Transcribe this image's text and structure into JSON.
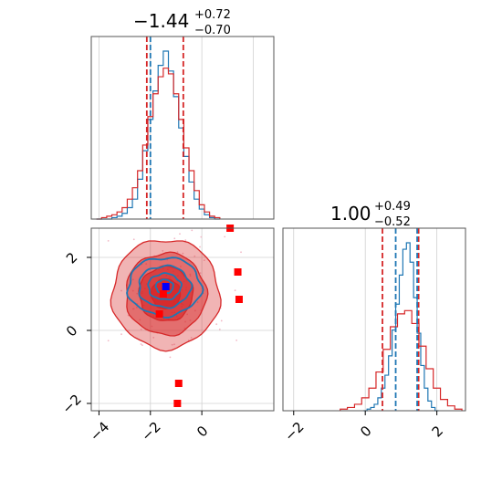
{
  "chart_data": [
    {
      "type": "histogram",
      "panel": "top-left",
      "title": {
        "main": "−1.44",
        "plus": "+0.72",
        "minus": "−0.70"
      },
      "xlim": [
        -4.3,
        2.8
      ],
      "grid": true,
      "series": [
        {
          "color": "#1f77b4",
          "centers": [
            -4.0,
            -3.8,
            -3.6,
            -3.4,
            -3.2,
            -3.0,
            -2.8,
            -2.6,
            -2.4,
            -2.2,
            -2.0,
            -1.8,
            -1.6,
            -1.4,
            -1.2,
            -1.0,
            -0.8,
            -0.6,
            -0.4,
            -0.2,
            0.0,
            0.2,
            0.4,
            0.6
          ],
          "counts": [
            0,
            0,
            0,
            1,
            2,
            4,
            8,
            14,
            28,
            48,
            70,
            90,
            108,
            118,
            104,
            86,
            64,
            44,
            26,
            14,
            7,
            3,
            1,
            0
          ]
        },
        {
          "color": "#d62728",
          "centers": [
            -4.0,
            -3.8,
            -3.6,
            -3.4,
            -3.2,
            -3.0,
            -2.8,
            -2.6,
            -2.4,
            -2.2,
            -2.0,
            -1.8,
            -1.6,
            -1.4,
            -1.2,
            -1.0,
            -0.8,
            -0.6,
            -0.4,
            -0.2,
            0.0,
            0.2,
            0.4,
            0.6
          ],
          "counts": [
            0,
            1,
            2,
            3,
            5,
            8,
            14,
            22,
            34,
            52,
            72,
            88,
            100,
            106,
            102,
            88,
            70,
            50,
            34,
            20,
            10,
            5,
            2,
            1
          ]
        }
      ],
      "quantile_lines": [
        {
          "color": "#d62728",
          "x": [
            -2.14,
            -0.72
          ]
        },
        {
          "color": "#1f77b4",
          "x": [
            -2.0
          ]
        }
      ]
    },
    {
      "type": "contour",
      "panel": "bottom-left",
      "xlim": [
        -4.3,
        2.8
      ],
      "ylim": [
        -2.2,
        2.8
      ],
      "x_ticks": [
        "−4",
        "−2",
        "0"
      ],
      "x_tick_values": [
        -4,
        -2,
        0
      ],
      "y_ticks": [
        "−2",
        "0",
        "2"
      ],
      "y_tick_values": [
        -2,
        0,
        2
      ],
      "grid": true,
      "blue_center": [
        -1.45,
        1.2
      ],
      "blue_spread": [
        0.75,
        0.42
      ],
      "red_center": [
        -1.4,
        1.0
      ],
      "red_spread": [
        0.95,
        0.68
      ],
      "markers": {
        "red": [
          [
            1.1,
            2.8
          ],
          [
            1.4,
            1.6
          ],
          [
            1.45,
            0.85
          ],
          [
            -1.5,
            1.0
          ],
          [
            -1.65,
            0.45
          ],
          [
            -0.9,
            -1.45
          ],
          [
            -0.95,
            -2.0
          ]
        ],
        "blue": [
          [
            -1.4,
            1.2
          ]
        ]
      }
    },
    {
      "type": "histogram",
      "panel": "bottom-right",
      "title": {
        "main": "1.00",
        "plus": "+0.49",
        "minus": "−0.52"
      },
      "xlim": [
        -2.3,
        2.8
      ],
      "x_ticks": [
        "−2",
        "0",
        "2"
      ],
      "x_tick_values": [
        -2,
        0,
        2
      ],
      "grid": true,
      "series": [
        {
          "color": "#1f77b4",
          "centers": [
            0.0,
            0.1,
            0.2,
            0.3,
            0.4,
            0.5,
            0.6,
            0.7,
            0.8,
            0.9,
            1.0,
            1.1,
            1.2,
            1.3,
            1.4,
            1.5,
            1.6,
            1.7,
            1.8,
            1.9,
            2.0
          ],
          "counts": [
            0,
            1,
            2,
            4,
            8,
            14,
            22,
            34,
            50,
            66,
            84,
            100,
            104,
            92,
            70,
            48,
            28,
            14,
            6,
            2,
            0
          ]
        },
        {
          "color": "#d62728",
          "centers": [
            -0.6,
            -0.4,
            -0.2,
            0.0,
            0.2,
            0.4,
            0.6,
            0.8,
            1.0,
            1.2,
            1.4,
            1.6,
            1.8,
            2.0,
            2.2,
            2.4,
            2.6
          ],
          "counts": [
            1,
            2,
            4,
            8,
            14,
            24,
            38,
            52,
            60,
            62,
            54,
            40,
            26,
            14,
            7,
            3,
            1
          ]
        }
      ],
      "quantile_lines": [
        {
          "color": "#d62728",
          "x": [
            0.48,
            1.49
          ]
        },
        {
          "color": "#1f77b4",
          "x": [
            0.85,
            1.45
          ]
        }
      ]
    }
  ]
}
